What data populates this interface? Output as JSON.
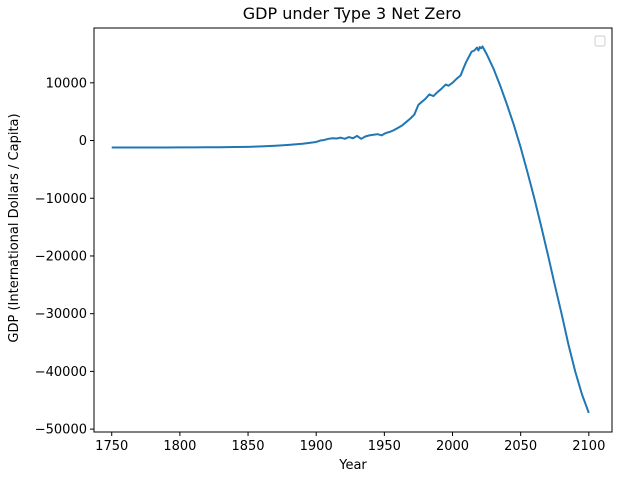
{
  "chart_data": {
    "type": "line",
    "title": "GDP under Type 3 Net Zero",
    "xlabel": "Year",
    "ylabel": "GDP (International Dollars / Capita)",
    "xlim": [
      1737,
      2117
    ],
    "ylim": [
      -50500,
      19500
    ],
    "xticks": [
      1750,
      1800,
      1850,
      1900,
      1950,
      2000,
      2050,
      2100
    ],
    "yticks": [
      -50000,
      -40000,
      -30000,
      -20000,
      -10000,
      0,
      10000
    ],
    "grid": false,
    "legend": "top-right",
    "colors": {
      "series": "#1f77b4"
    },
    "series": [
      {
        "x": [
          1750,
          1760,
          1770,
          1780,
          1790,
          1800,
          1810,
          1820,
          1830,
          1840,
          1850,
          1860,
          1870,
          1880,
          1890,
          1895,
          1900,
          1903,
          1906,
          1909,
          1912,
          1915,
          1918,
          1921,
          1924,
          1927,
          1930,
          1933,
          1936,
          1939,
          1942,
          1945,
          1948,
          1951,
          1954,
          1957,
          1960,
          1963,
          1966,
          1969,
          1972,
          1975,
          1977,
          1980,
          1983,
          1986,
          1989,
          1992,
          1995,
          1997,
          2000,
          2003,
          2006,
          2008,
          2010,
          2012,
          2014,
          2016,
          2018,
          2019,
          2020,
          2021,
          2022,
          2025,
          2030,
          2035,
          2040,
          2045,
          2050,
          2055,
          2060,
          2065,
          2070,
          2075,
          2080,
          2085,
          2090,
          2095,
          2100
        ],
        "y": [
          -1200,
          -1200,
          -1200,
          -1200,
          -1200,
          -1180,
          -1180,
          -1170,
          -1160,
          -1130,
          -1090,
          -1010,
          -900,
          -750,
          -550,
          -400,
          -250,
          0,
          100,
          300,
          400,
          350,
          500,
          300,
          600,
          400,
          800,
          300,
          700,
          900,
          1000,
          1100,
          900,
          1300,
          1500,
          1800,
          2200,
          2600,
          3200,
          3800,
          4500,
          6200,
          6600,
          7200,
          8000,
          7700,
          8400,
          9000,
          9700,
          9500,
          10000,
          10700,
          11300,
          12500,
          13600,
          14500,
          15400,
          15600,
          16100,
          15600,
          16200,
          16000,
          16300,
          15000,
          12500,
          9500,
          6200,
          2700,
          -1200,
          -5500,
          -10000,
          -14800,
          -19800,
          -25000,
          -30000,
          -35300,
          -40000,
          -44000,
          -47200
        ]
      }
    ]
  }
}
